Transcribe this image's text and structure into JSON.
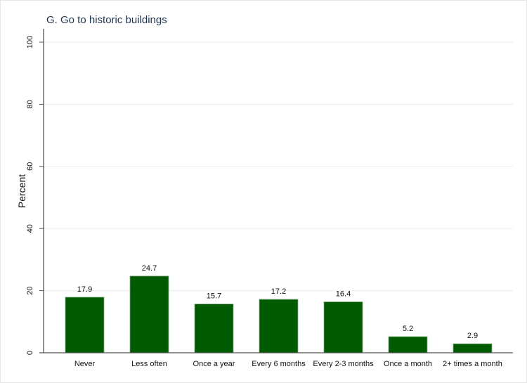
{
  "chart_data": {
    "type": "bar",
    "title": "G. Go to historic buildings",
    "xlabel": "",
    "ylabel": "Percent",
    "ylim": [
      0,
      100
    ],
    "yticks": [
      0,
      20,
      40,
      60,
      80,
      100
    ],
    "grid": true,
    "categories": [
      "Never",
      "Less often",
      "Once a year",
      "Every 6 months",
      "Every 2-3 months",
      "Once a month",
      "2+ times a month"
    ],
    "values": [
      17.9,
      24.7,
      15.7,
      17.2,
      16.4,
      5.2,
      2.9
    ],
    "value_labels": [
      "17.9",
      "24.7",
      "15.7",
      "17.2",
      "16.4",
      "5.2",
      "2.9"
    ],
    "bar_color": "#005a00",
    "grid_color": "#eaf0f0"
  }
}
